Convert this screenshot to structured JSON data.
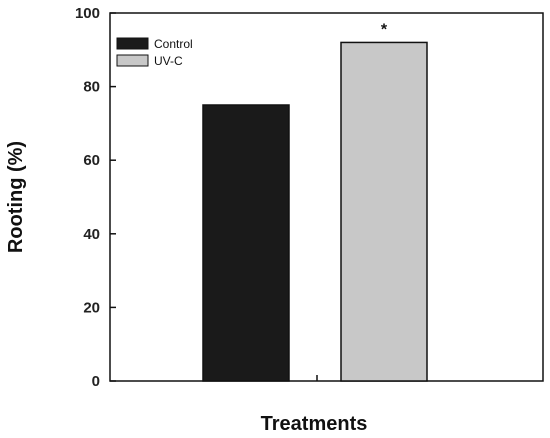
{
  "chart_data": {
    "type": "bar",
    "categories": [
      "Control",
      "UV-C"
    ],
    "series": [
      {
        "name": "Control",
        "values": [
          75,
          null
        ],
        "color": "#1a1a1a"
      },
      {
        "name": "UV-C",
        "values": [
          null,
          92
        ],
        "color": "#c8c8c8"
      }
    ],
    "values": [
      75,
      92
    ],
    "colors": [
      "#1a1a1a",
      "#c8c8c8"
    ],
    "xlabel": "Treatments",
    "ylabel": "Rooting (%)",
    "ylim": [
      0,
      100
    ],
    "yticks": [
      0,
      20,
      40,
      60,
      80,
      100
    ],
    "grid": false,
    "legend": {
      "position": "top-left",
      "entries": [
        "Control",
        "UV-C"
      ]
    },
    "annotations": [
      {
        "category": "UV-C",
        "text": "*"
      }
    ]
  }
}
